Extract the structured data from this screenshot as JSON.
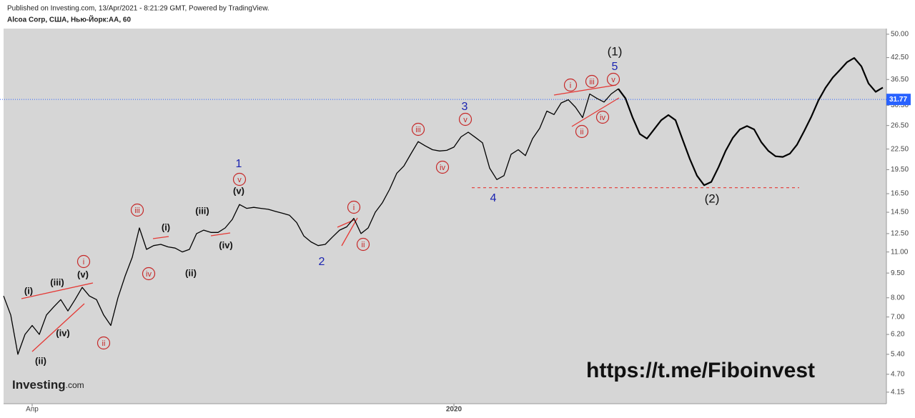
{
  "header": "Published on Investing.com, 13/Apr/2021 - 8:21:29 GMT, Powered by TradingView.",
  "chart_data": {
    "type": "line",
    "title": "Alcoa Corp, США, Нью-Йорк:AA, 60",
    "categories": [
      null,
      null,
      null,
      null,
      "Апр",
      null,
      null,
      null,
      null,
      null,
      null,
      null,
      null,
      null,
      null,
      null,
      null,
      null,
      null,
      null,
      null,
      null,
      null,
      null,
      null,
      null,
      null,
      null,
      null,
      null,
      null,
      null,
      null,
      null,
      null,
      null,
      null,
      null,
      null,
      null,
      null,
      null,
      null,
      null,
      null,
      null,
      null,
      null,
      null,
      null,
      null,
      null,
      null,
      null,
      null,
      null,
      null,
      null,
      null,
      null,
      null,
      null,
      null,
      "2020",
      null,
      null,
      null,
      null,
      null,
      null,
      null,
      null,
      null,
      null,
      null,
      null,
      null,
      null,
      null,
      null,
      null,
      null,
      null,
      null,
      null,
      null,
      null,
      null,
      null,
      null,
      null,
      null,
      null,
      null,
      null,
      null,
      null,
      null,
      null,
      null,
      null,
      null,
      null,
      null,
      null,
      null,
      null,
      null,
      null,
      null,
      null,
      null,
      null,
      null,
      null,
      null,
      null,
      null,
      null,
      null,
      null,
      null,
      null,
      null
    ],
    "series": [
      {
        "color": "#000000",
        "line_width": 1.3,
        "values": [
          8.1,
          7.1,
          5.4,
          6.2,
          6.6,
          6.2,
          7.1,
          7.5,
          7.9,
          7.3,
          7.9,
          8.6,
          8.1,
          7.9,
          7.1,
          6.6,
          8.0,
          9.3,
          10.6,
          13.0,
          11.2,
          11.5,
          11.6,
          11.4,
          11.3,
          11.0,
          11.2,
          12.5,
          12.8,
          12.6,
          12.6,
          13.0,
          13.8,
          15.3,
          14.9,
          15.0,
          14.9,
          14.8,
          14.6,
          14.4,
          14.2,
          13.5,
          12.3,
          11.8,
          11.5,
          11.6,
          12.2,
          12.8,
          13.1,
          13.9,
          12.5,
          13.0,
          14.5,
          15.5,
          17.0,
          19.0,
          20.0,
          21.8,
          23.7,
          23.0,
          22.4,
          22.2,
          22.3,
          22.8,
          24.5,
          25.3,
          24.4,
          23.5,
          19.7,
          18.2,
          18.7,
          21.7,
          22.4,
          21.5,
          24.2,
          26.0,
          29.3,
          28.6,
          31.0,
          31.7,
          30.1,
          28.0,
          33.0,
          32.0,
          31.2,
          33.0,
          34.2,
          null,
          null,
          null,
          null,
          null,
          null,
          null,
          null,
          null,
          null,
          null,
          null,
          null,
          null,
          null,
          null,
          null,
          null,
          null,
          null,
          null,
          null,
          null,
          null,
          null,
          null,
          null,
          null,
          null,
          null,
          null,
          null,
          null,
          null,
          null,
          null,
          null
        ]
      },
      {
        "color": "#000000",
        "line_width": 2.2,
        "values": [
          null,
          null,
          null,
          null,
          null,
          null,
          null,
          null,
          null,
          null,
          null,
          null,
          null,
          null,
          null,
          null,
          null,
          null,
          null,
          null,
          null,
          null,
          null,
          null,
          null,
          null,
          null,
          null,
          null,
          null,
          null,
          null,
          null,
          null,
          null,
          null,
          null,
          null,
          null,
          null,
          null,
          null,
          null,
          null,
          null,
          null,
          null,
          null,
          null,
          null,
          null,
          null,
          null,
          null,
          null,
          null,
          null,
          null,
          null,
          null,
          null,
          null,
          null,
          null,
          null,
          null,
          null,
          null,
          null,
          null,
          null,
          null,
          null,
          null,
          null,
          null,
          null,
          null,
          null,
          null,
          null,
          null,
          null,
          null,
          null,
          null,
          34.2,
          32.0,
          28.0,
          25.0,
          24.2,
          25.8,
          27.5,
          28.5,
          27.5,
          24.0,
          21.0,
          18.7,
          17.5,
          17.9,
          19.8,
          22.2,
          24.3,
          25.8,
          26.4,
          25.8,
          23.6,
          22.2,
          21.4,
          21.3,
          21.8,
          23.2,
          25.5,
          28.2,
          31.6,
          34.5,
          37.0,
          39.0,
          41.2,
          42.4,
          40.0,
          35.5,
          33.5,
          34.5
        ]
      }
    ],
    "log_scale": true,
    "ylim": [
      3.83,
      52.0
    ],
    "yticks": [
      {
        "value": 50,
        "label": "50.00"
      },
      {
        "value": 42.5,
        "label": "42.50"
      },
      {
        "value": 36.5,
        "label": "36.50"
      },
      {
        "value": 30.5,
        "label": "30.50"
      },
      {
        "value": 26.5,
        "label": "26.50"
      },
      {
        "value": 22.5,
        "label": "22.50"
      },
      {
        "value": 19.5,
        "label": "19.50"
      },
      {
        "value": 16.5,
        "label": "16.50"
      },
      {
        "value": 14.5,
        "label": "14.50"
      },
      {
        "value": 12.5,
        "label": "12.50"
      },
      {
        "value": 11,
        "label": "11.00"
      },
      {
        "value": 9.5,
        "label": "9.50"
      },
      {
        "value": 8,
        "label": "8.00"
      },
      {
        "value": 7,
        "label": "7.00"
      },
      {
        "value": 6.2,
        "label": "6.20"
      },
      {
        "value": 5.4,
        "label": "5.40"
      },
      {
        "value": 4.7,
        "label": "4.70"
      },
      {
        "value": 4.15,
        "label": "4.15"
      }
    ],
    "last_price": 31.77,
    "last_price_color": "#2962ff",
    "support_level": 17.2,
    "support_color": "#e53935",
    "annotations": [
      "(i)",
      "(ii)",
      "(iii)",
      "(iv)",
      "(v)",
      "i",
      "ii",
      "iii",
      "(i)",
      "iv",
      "(ii)",
      "(iii)",
      "(iv)",
      "(v)",
      "v",
      "1",
      "2",
      "i",
      "ii",
      "iii",
      "iv",
      "v",
      "3",
      "4",
      "i",
      "ii",
      "iii",
      "iv",
      "v",
      "5",
      "(1)",
      "(2)"
    ],
    "watermark": "https://t.me/Fiboinvest",
    "logo": "Investing",
    "logo_suffix": ".com"
  }
}
